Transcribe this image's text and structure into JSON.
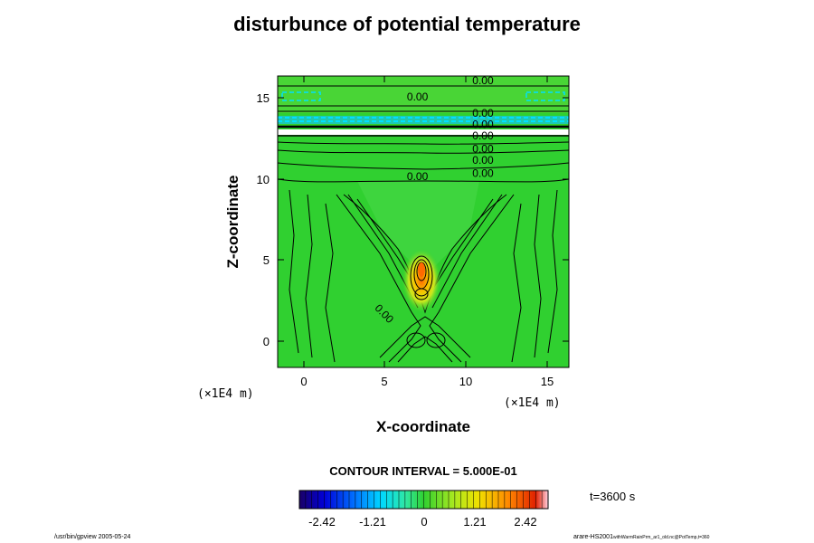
{
  "chart_data": {
    "type": "contour",
    "title": "disturbunce of potential temperature",
    "xlabel": "X-coordinate",
    "ylabel": "Z-coordinate",
    "x_unit": "(×1E4 m)",
    "y_unit": "(×1E4 m)",
    "xlim": [
      -1.6,
      16.2
    ],
    "ylim": [
      -1.6,
      16.3
    ],
    "x_ticks": [
      0,
      5,
      10,
      15
    ],
    "y_ticks": [
      0,
      5,
      10,
      15
    ],
    "x_tick_labels": [
      "0",
      "5",
      "10",
      "15"
    ],
    "y_tick_labels": [
      "0",
      "5",
      "10",
      "15"
    ],
    "contour_interval_text": "CONTOUR INTERVAL = 5.000E-01",
    "contour_labels": [
      {
        "text": "0.00",
        "x": 10.3,
        "z": 15.8
      },
      {
        "text": "0.00",
        "x": 6.3,
        "z": 14.8
      },
      {
        "text": "0.00",
        "x": 10.3,
        "z": 13.8
      },
      {
        "text": "0.00",
        "x": 10.3,
        "z": 13.1
      },
      {
        "text": "0.00",
        "x": 10.3,
        "z": 12.4
      },
      {
        "text": "0.00",
        "x": 10.3,
        "z": 11.6
      },
      {
        "text": "0.00",
        "x": 10.3,
        "z": 10.9
      },
      {
        "text": "0.00",
        "x": 10.3,
        "z": 10.1
      },
      {
        "text": "0.00",
        "x": 6.3,
        "z": 9.9
      },
      {
        "text": "0.00",
        "x": 4.3,
        "z": 2.0
      }
    ],
    "peak": {
      "x": 7.2,
      "z": 4.3,
      "value": 2.42
    },
    "colorbar": {
      "tick_labels": [
        "-2.42",
        "-1.21",
        "0",
        "1.21",
        "2.42"
      ],
      "range": [
        -2.42,
        2.42
      ]
    },
    "time_label": "t=3600 s",
    "field_color": "#30d030",
    "colormap": [
      "#1a0066",
      "#0000d8",
      "#0070ff",
      "#00d8ff",
      "#30e8a0",
      "#30d030",
      "#a8e820",
      "#f0e000",
      "#ff8800",
      "#e02000",
      "#ffd0e0"
    ]
  },
  "footer": {
    "left": "/usr/bin/gpview 2005-05-24",
    "right_main": "arare-HS2001",
    "right_sub": "withWarmRainPrm_ar1_old.nc@PotTemp,t=360"
  }
}
